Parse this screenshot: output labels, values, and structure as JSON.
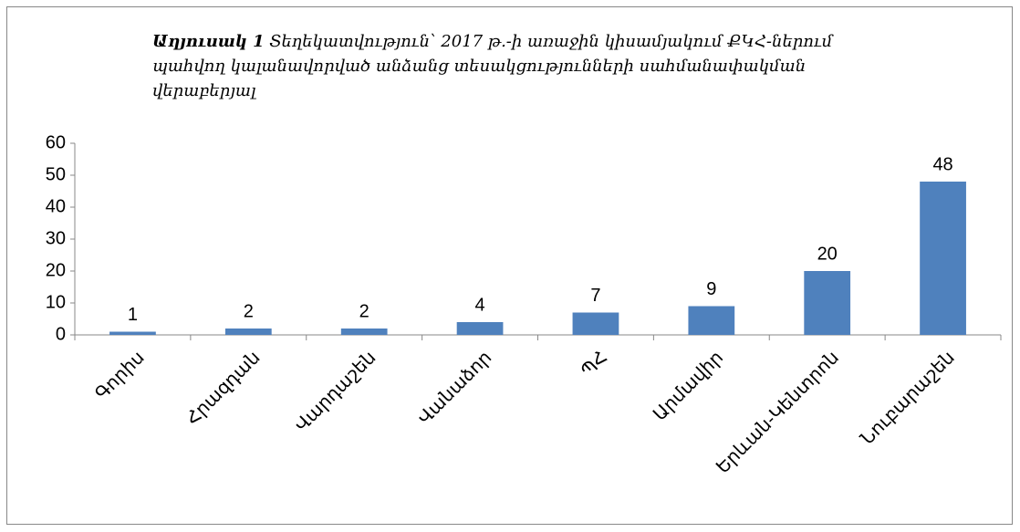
{
  "chart_data": {
    "type": "bar",
    "title_prefix": "Աղյուսակ 1",
    "title": "Տեղեկատվություն՝ 2017 թ.-ի առաջին կիսամյակում ՔԿՀ-ներում պահվող կալանավորված անձանց տեսակցությունների սահմանափակման վերաբերյալ",
    "categories": [
      "Գորիս",
      "Հրազդան",
      "Վարդաշեն",
      "Վանաձոր",
      "ՊՀ",
      "Արմավիր",
      "Երևան-Կենտրոն",
      "Նուբարաշեն"
    ],
    "values": [
      1,
      2,
      2,
      4,
      7,
      9,
      20,
      48
    ],
    "color": "#4f81bd",
    "ylim": [
      0,
      60
    ],
    "yticks": [
      0,
      10,
      20,
      30,
      40,
      50,
      60
    ],
    "grid": false
  }
}
